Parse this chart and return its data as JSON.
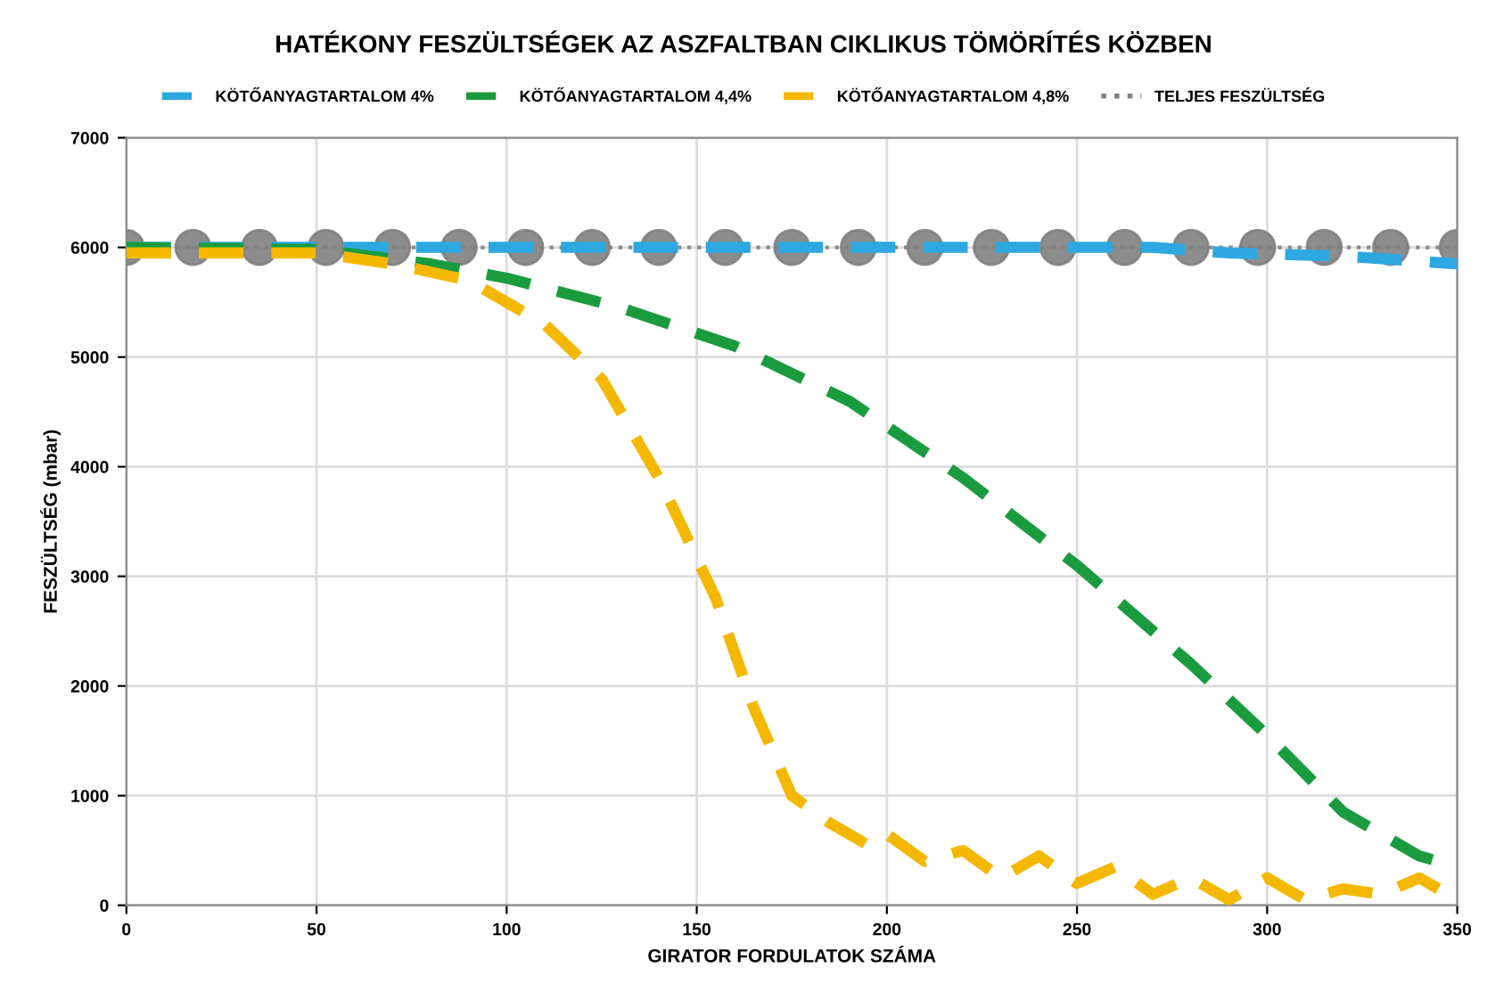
{
  "chart_data": {
    "type": "line",
    "title": "HATÉKONY FESZÜLTSÉGEK AZ ASZFALTBAN CIKLIKUS TÖMÖRÍTÉS KÖZBEN",
    "xlabel": "GIRATOR FORDULATOK SZÁMA",
    "ylabel": "FESZÜLTSÉG (mbar)",
    "xlim": [
      0,
      350
    ],
    "xticks": [
      0,
      50,
      100,
      150,
      200,
      250,
      300,
      350
    ],
    "ylim": [
      0,
      7000
    ],
    "yticks": [
      0,
      1000,
      2000,
      3000,
      4000,
      5000,
      6000,
      7000
    ],
    "grid": true,
    "legend": "top",
    "line_style": "dashed",
    "series": [
      {
        "name": "KÖTŐANYAGTARTALOM 4%",
        "color": "#2ea8e0",
        "x": [
          0,
          270,
          290,
          320,
          350
        ],
        "values": [
          6000,
          6000,
          5950,
          5920,
          5850
        ]
      },
      {
        "name": "KÖTŐANYAGTARTALOM 4,4%",
        "color": "#1a9c3e",
        "x": [
          0,
          50,
          80,
          100,
          130,
          160,
          190,
          220,
          250,
          280,
          300,
          320,
          340,
          350
        ],
        "values": [
          6000,
          5980,
          5850,
          5720,
          5450,
          5100,
          4600,
          3900,
          3100,
          2200,
          1550,
          850,
          450,
          350
        ]
      },
      {
        "name": "KÖTŐANYAGTARTALOM 4,8%",
        "color": "#f5b800",
        "x": [
          0,
          50,
          70,
          90,
          110,
          125,
          140,
          155,
          165,
          175,
          185,
          195,
          200,
          210,
          220,
          230,
          240,
          250,
          260,
          270,
          280,
          290,
          300,
          310,
          320,
          330,
          340,
          350
        ],
        "values": [
          5950,
          5950,
          5850,
          5700,
          5300,
          4800,
          3900,
          2800,
          1800,
          1000,
          750,
          550,
          650,
          400,
          500,
          250,
          450,
          200,
          350,
          100,
          250,
          50,
          250,
          50,
          150,
          100,
          250,
          50
        ]
      },
      {
        "name": "TELJES FESZÜLTSÉG",
        "color": "#808080",
        "line_style": "dotted",
        "marker": "circle",
        "x": [
          0,
          17.5,
          35,
          52.5,
          70,
          87.5,
          105,
          122.5,
          140,
          157.5,
          175,
          192.5,
          210,
          227.5,
          245,
          262.5,
          280,
          297.5,
          315,
          332.5,
          350
        ],
        "values": [
          6000,
          6000,
          6000,
          6000,
          6000,
          6000,
          6000,
          6000,
          6000,
          6000,
          6000,
          6000,
          6000,
          6000,
          6000,
          6000,
          6000,
          6000,
          6000,
          6000,
          6000
        ]
      }
    ]
  }
}
